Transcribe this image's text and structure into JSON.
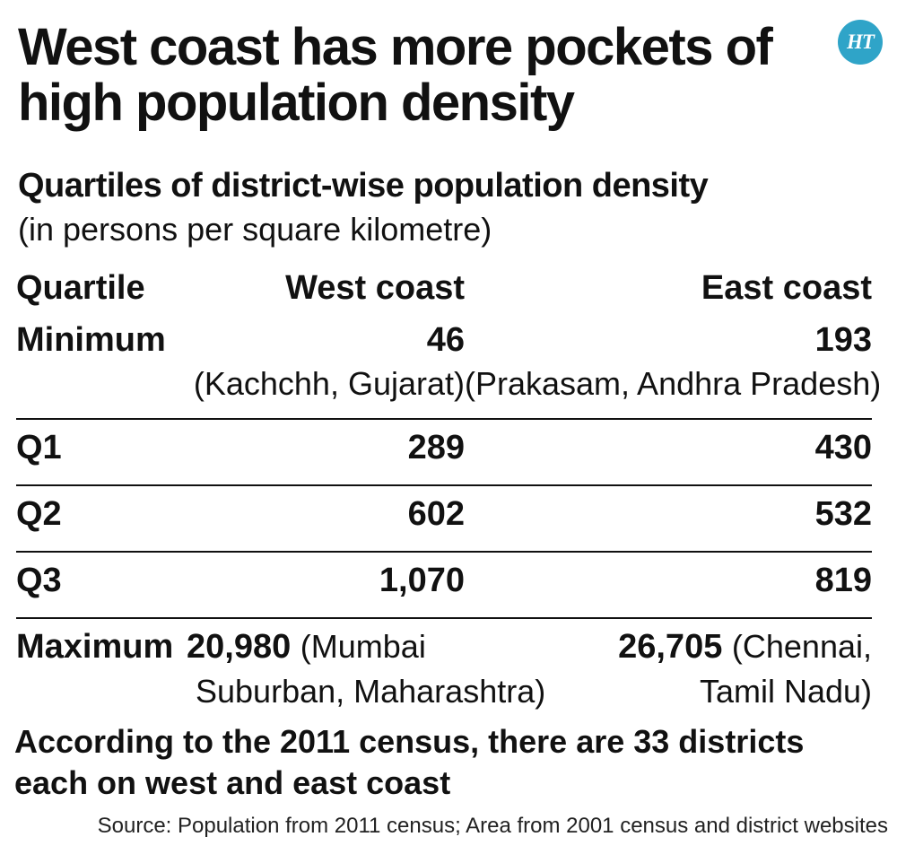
{
  "logo_text": "HT",
  "title": "West coast has more pockets of high population density",
  "subtitle": "Quartiles of district-wise population density",
  "unit_note": "(in persons per square kilometre)",
  "table": {
    "headers": [
      "Quartile",
      "West coast",
      "East coast"
    ],
    "rows": [
      {
        "label": "Minimum",
        "west": "46",
        "west_note": "(Kachchh, Gujarat)",
        "east": "193",
        "east_note": "(Prakasam, Andhra Pradesh)"
      },
      {
        "label": "Q1",
        "west": "289",
        "east": "430"
      },
      {
        "label": "Q2",
        "west": "602",
        "east": "532"
      },
      {
        "label": "Q3",
        "west": "1,070",
        "east": "819"
      },
      {
        "label": "Maximum",
        "west": "20,980",
        "west_note_line1": "(Mumbai",
        "west_note_line2": "Suburban, Maharashtra)",
        "east": "26,705",
        "east_note_line1": "(Chennai,",
        "east_note_line2": "Tamil Nadu)"
      }
    ]
  },
  "footnote": "According to the 2011 census, there are 33 districts each on west and east coast",
  "source": "Source: Population from 2011 census; Area from 2001 census and district websites",
  "colors": {
    "logo_bg": "#2fa4c8",
    "text": "#111111"
  },
  "chart_data": {
    "type": "table",
    "title": "West coast has more pockets of high population density",
    "subtitle": "Quartiles of district-wise population density",
    "unit": "(in persons per square kilometre)",
    "columns": [
      "Quartile",
      "West coast",
      "East coast"
    ],
    "categories": [
      "Minimum",
      "Q1",
      "Q2",
      "Q3",
      "Maximum"
    ],
    "series": [
      {
        "name": "West coast",
        "values": [
          46,
          289,
          602,
          1070,
          20980
        ]
      },
      {
        "name": "East coast",
        "values": [
          193,
          430,
          532,
          819,
          26705
        ]
      }
    ]
  }
}
